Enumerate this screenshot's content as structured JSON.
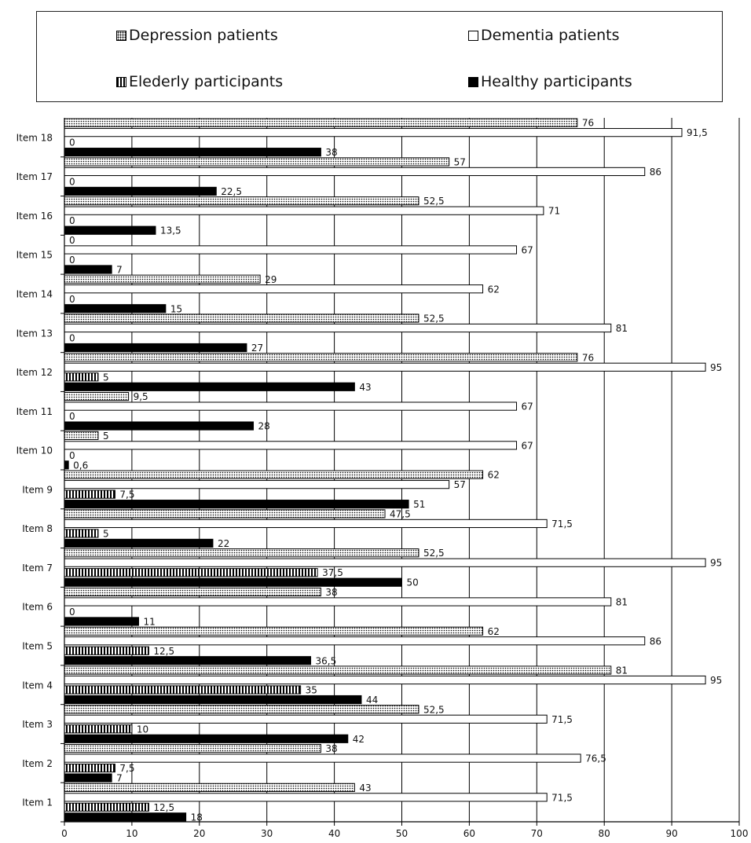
{
  "legend": {
    "depression": "Depression patients",
    "dementia": "Dementia patients",
    "elderly": "Elederly participants",
    "healthy": "Healthy participants"
  },
  "chart_data": {
    "type": "bar",
    "orientation": "horizontal",
    "categories": [
      "Item 1",
      "Item 2",
      "Item 3",
      "Item 4",
      "Item 5",
      "Item 6",
      "Item 7",
      "Item 8",
      "Item 9",
      "Item 10",
      "Item 11",
      "Item 12",
      "Item 13",
      "Item 14",
      "Item 15",
      "Item 16",
      "Item 17",
      "Item 18"
    ],
    "series": [
      {
        "name": "Depression patients",
        "key": "depression",
        "values": [
          43,
          38,
          52.5,
          81,
          62,
          38,
          52.5,
          47.5,
          62,
          5,
          9.5,
          76,
          52.5,
          29,
          0,
          52.5,
          57,
          76
        ]
      },
      {
        "name": "Dementia patients",
        "key": "dementia",
        "values": [
          71.5,
          76.5,
          71.5,
          95,
          86,
          81,
          95,
          71.5,
          57,
          67,
          67,
          95,
          81,
          62,
          67,
          71,
          86,
          91.5
        ]
      },
      {
        "name": "Elederly participants",
        "key": "elderly",
        "values": [
          12.5,
          7.5,
          10,
          35,
          12.5,
          0,
          37.5,
          5,
          7.5,
          0,
          0,
          5,
          0,
          0,
          0,
          0,
          0,
          0
        ]
      },
      {
        "name": "Healthy participants",
        "key": "healthy",
        "values": [
          18,
          7,
          42,
          44,
          36.5,
          11,
          50,
          22,
          51,
          0.6,
          28,
          43,
          27,
          15,
          7,
          13.5,
          22.5,
          38
        ]
      }
    ],
    "xlim": [
      0,
      100
    ],
    "xticks": [
      0,
      10,
      20,
      30,
      40,
      50,
      60,
      70,
      80,
      90,
      100
    ],
    "grid": "vertical",
    "legend_position": "top",
    "decimal_separator": ","
  }
}
